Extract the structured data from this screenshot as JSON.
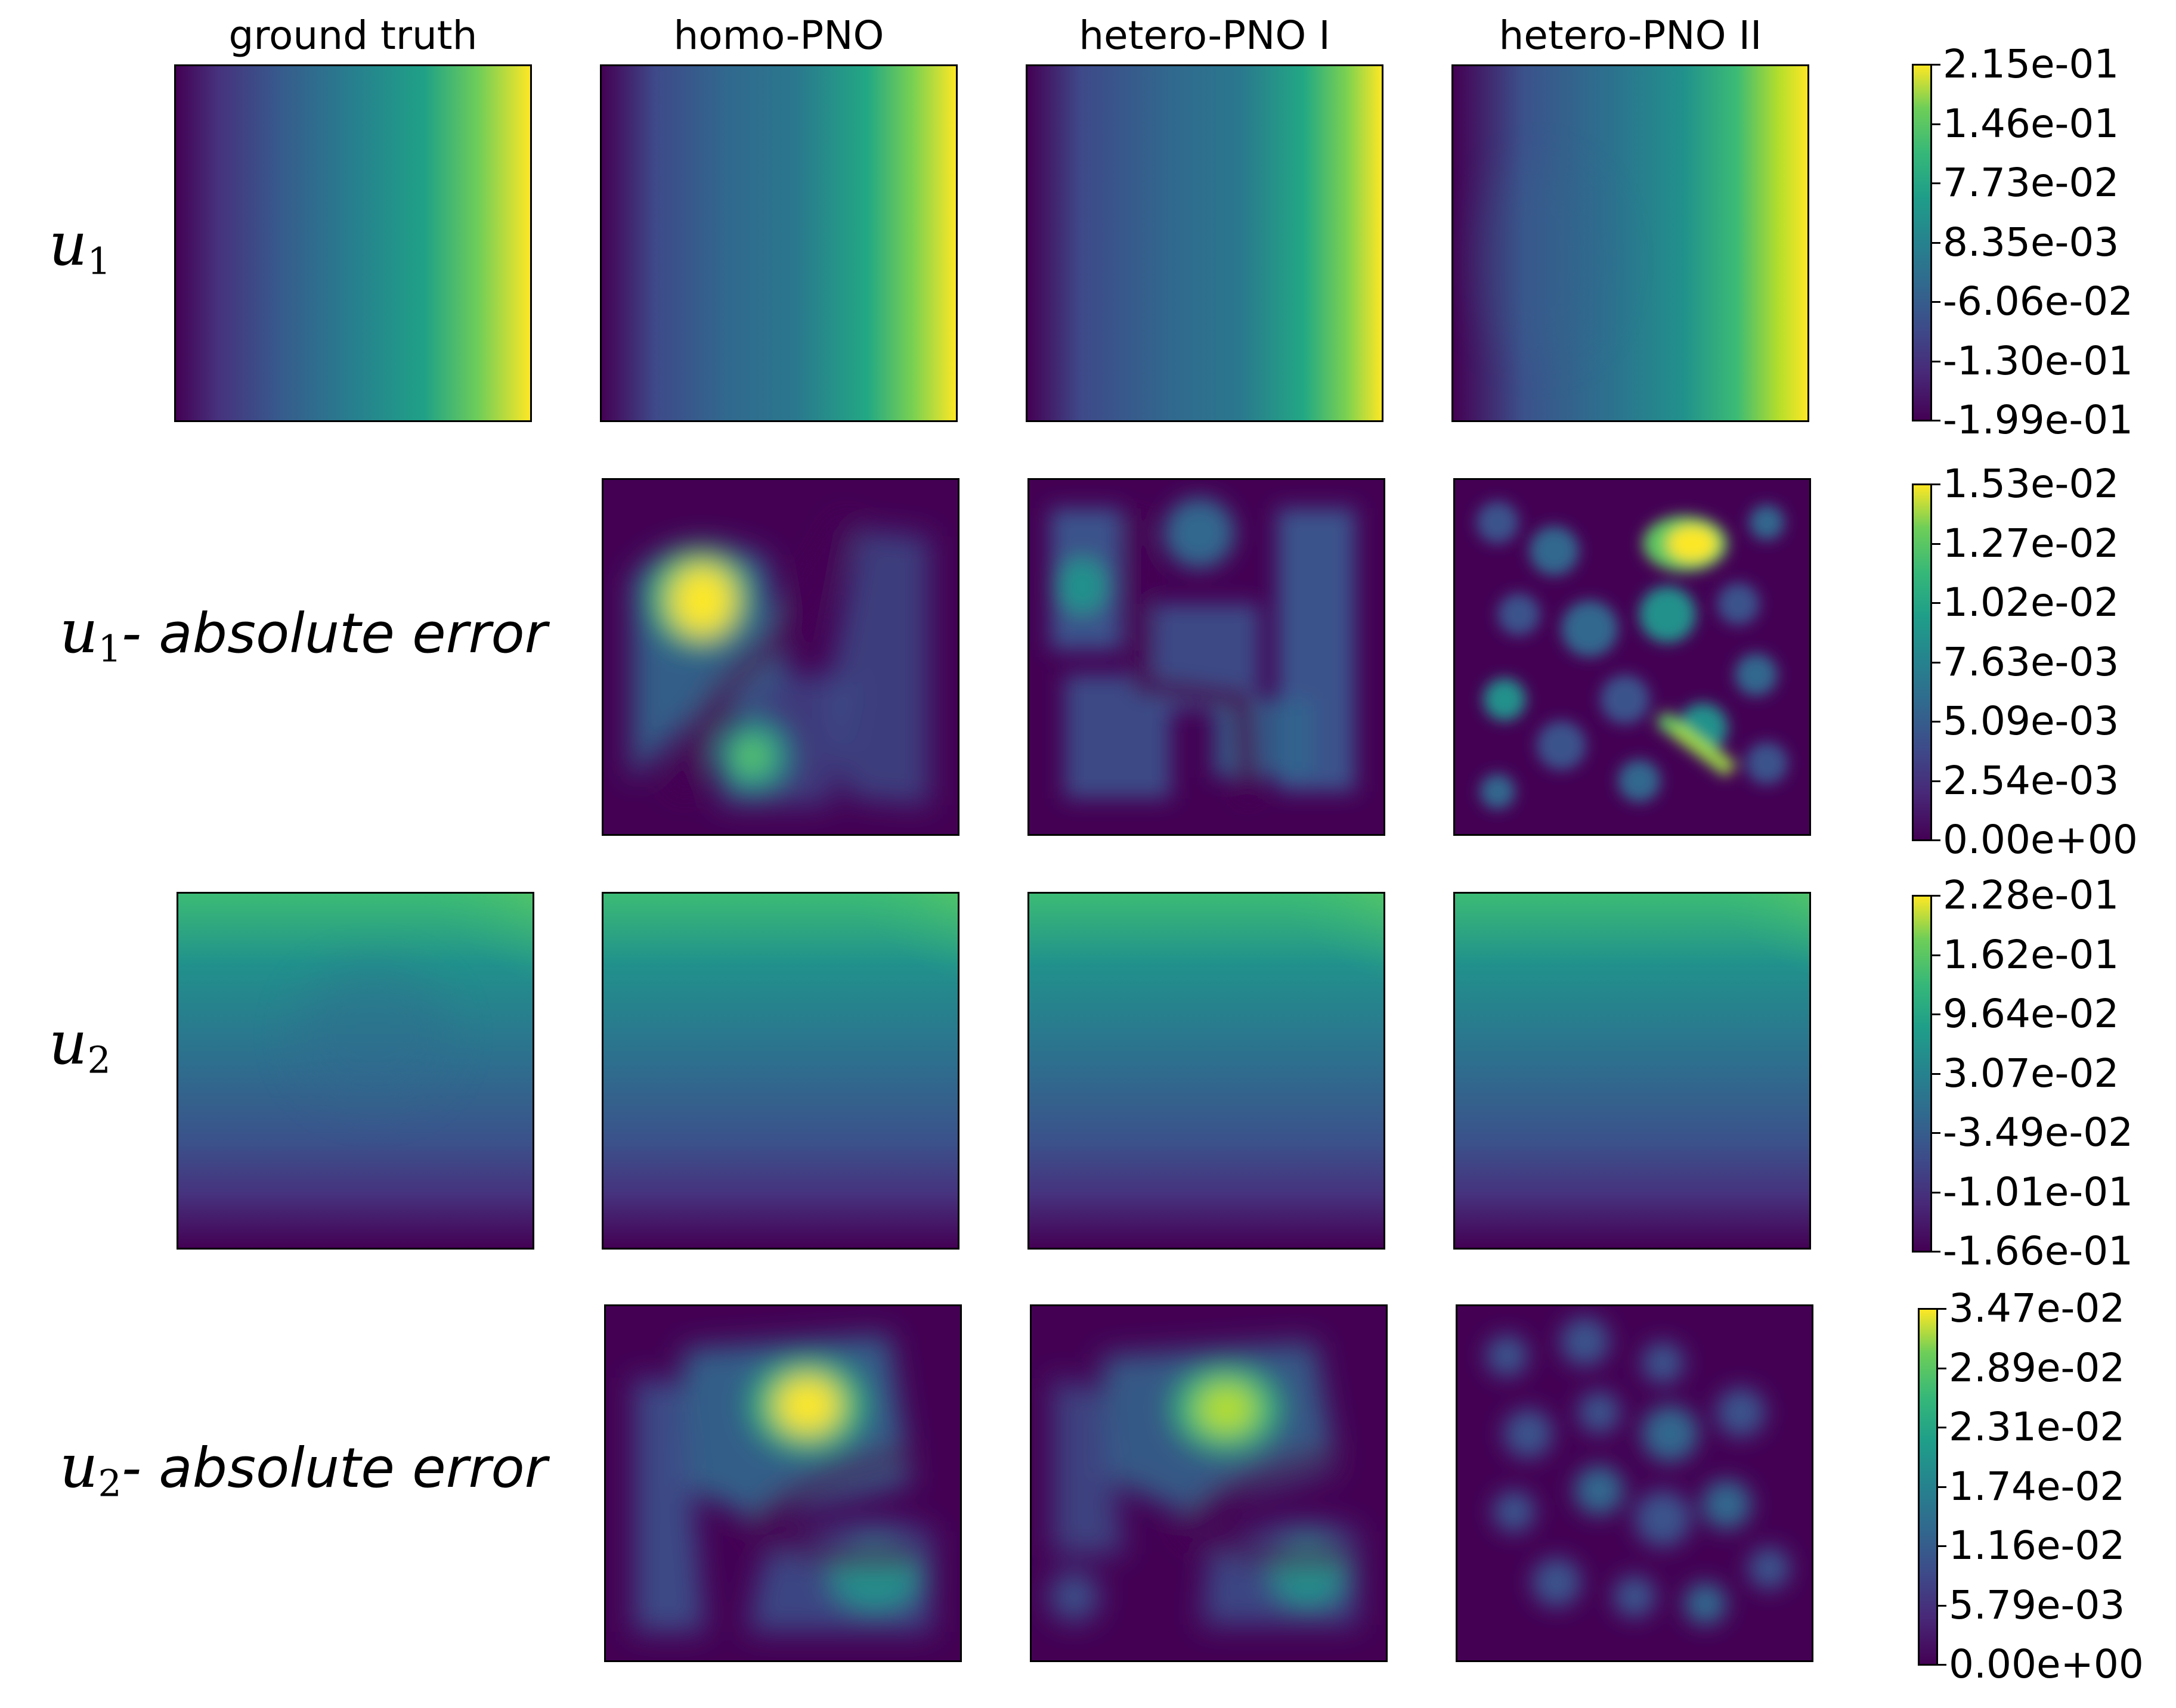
{
  "chart_data": {
    "type": "heatmap",
    "columns": [
      "ground truth",
      "homo-PNO",
      "hetero-PNO I",
      "hetero-PNO II"
    ],
    "rows": [
      {
        "label": "u",
        "subscript": "1",
        "suffix": "",
        "panels": [
          "ground truth",
          "homo-PNO",
          "hetero-PNO I",
          "hetero-PNO II"
        ],
        "colorbar_ticks": [
          "2.15e-01",
          "1.46e-01",
          "7.73e-02",
          "8.35e-03",
          "-6.06e-02",
          "-1.30e-01",
          "-1.99e-01"
        ],
        "range": [
          -0.199,
          0.215
        ],
        "colormap": "viridis"
      },
      {
        "label": "u",
        "subscript": "1",
        "suffix": "- absolute error",
        "panels": [
          "homo-PNO",
          "hetero-PNO I",
          "hetero-PNO II"
        ],
        "colorbar_ticks": [
          "1.53e-02",
          "1.27e-02",
          "1.02e-02",
          "7.63e-03",
          "5.09e-03",
          "2.54e-03",
          "0.00e+00"
        ],
        "range": [
          0.0,
          0.0153
        ],
        "colormap": "viridis"
      },
      {
        "label": "u",
        "subscript": "2",
        "suffix": "",
        "panels": [
          "ground truth",
          "homo-PNO",
          "hetero-PNO I",
          "hetero-PNO II"
        ],
        "colorbar_ticks": [
          "2.28e-01",
          "1.62e-01",
          "9.64e-02",
          "3.07e-02",
          "-3.49e-02",
          "-1.01e-01",
          "-1.66e-01"
        ],
        "range": [
          -0.166,
          0.228
        ],
        "colormap": "viridis"
      },
      {
        "label": "u",
        "subscript": "2",
        "suffix": "- absolute error",
        "panels": [
          "homo-PNO",
          "hetero-PNO I",
          "hetero-PNO II"
        ],
        "colorbar_ticks": [
          "3.47e-02",
          "2.89e-02",
          "2.31e-02",
          "1.74e-02",
          "1.16e-02",
          "5.79e-03",
          "0.00e+00"
        ],
        "range": [
          0.0,
          0.0347
        ],
        "colormap": "viridis"
      }
    ]
  }
}
